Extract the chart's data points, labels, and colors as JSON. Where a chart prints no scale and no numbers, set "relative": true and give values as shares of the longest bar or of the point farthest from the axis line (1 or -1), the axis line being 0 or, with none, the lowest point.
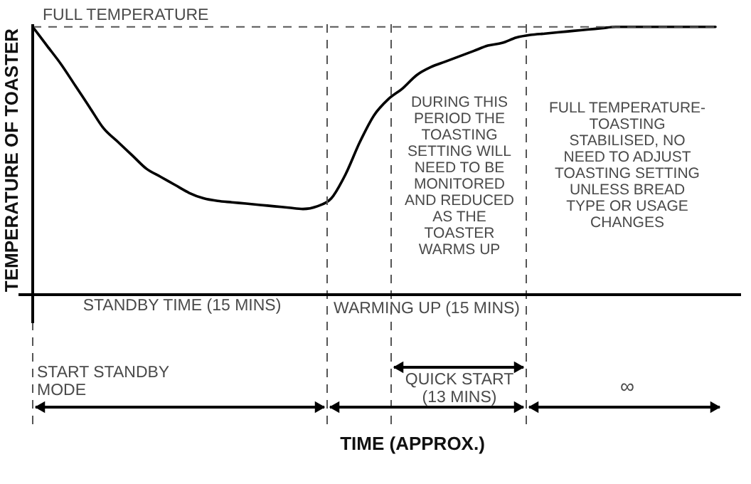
{
  "chart_data": {
    "type": "line",
    "relative": true,
    "categories": [
      null,
      null,
      null,
      null,
      null,
      null,
      null,
      null,
      null,
      null,
      null,
      null,
      null,
      null,
      null,
      null,
      null,
      null,
      null,
      null,
      null,
      null,
      null,
      null,
      null,
      null,
      null,
      null,
      null,
      null,
      null,
      null,
      null,
      null,
      null,
      null,
      null,
      null,
      null,
      null,
      null,
      null,
      null,
      null,
      null,
      null,
      null,
      null,
      null
    ],
    "series": [
      {
        "color": "#000000",
        "values": [
          1.0,
          0.93,
          0.86,
          0.78,
          0.7,
          0.62,
          0.57,
          0.52,
          0.47,
          0.44,
          0.41,
          0.38,
          0.36,
          0.35,
          0.345,
          0.34,
          0.335,
          0.33,
          0.325,
          0.32,
          0.33,
          0.36,
          0.45,
          0.57,
          0.67,
          0.73,
          0.77,
          0.82,
          0.85,
          0.87,
          0.89,
          0.91,
          0.93,
          0.94,
          0.96,
          0.97,
          0.975,
          0.98,
          0.985,
          0.99,
          0.995,
          1.0,
          1.0,
          1.0,
          1.0,
          1.0,
          1.0,
          1.0,
          1.0
        ]
      }
    ],
    "ylabel": "TEMPERATURE OF TOASTER",
    "ref_lines": [
      {
        "axis": "y",
        "value": 1,
        "label": "FULL TEMPERATURE",
        "line_style": "dashed",
        "color": "#555555"
      }
    ],
    "annotations": [
      "DURING THIS\nPERIOD THE\nTOASTING\nSETTING WILL\nNEED TO BE\nMONITORED\nAND REDUCED\nAS THE\nTOASTER\nWARMS UP",
      "FULL TEMPERATURE-\nTOASTING\nSTABILISED, NO\nNEED TO ADJUST\nTOASTING SETTING\nUNLESS BREAD\nTYPE OR USAGE\nCHANGES",
      "STANDBY TIME (15 MINS)",
      "WARMING UP (15 MINS)",
      "START STANDBY\nMODE",
      "QUICK START\n(13 MINS)",
      "∞",
      "TIME (APPROX.)"
    ],
    "tick_labels": false,
    "grid": false,
    "marker": "none",
    "line_style": "solid"
  }
}
